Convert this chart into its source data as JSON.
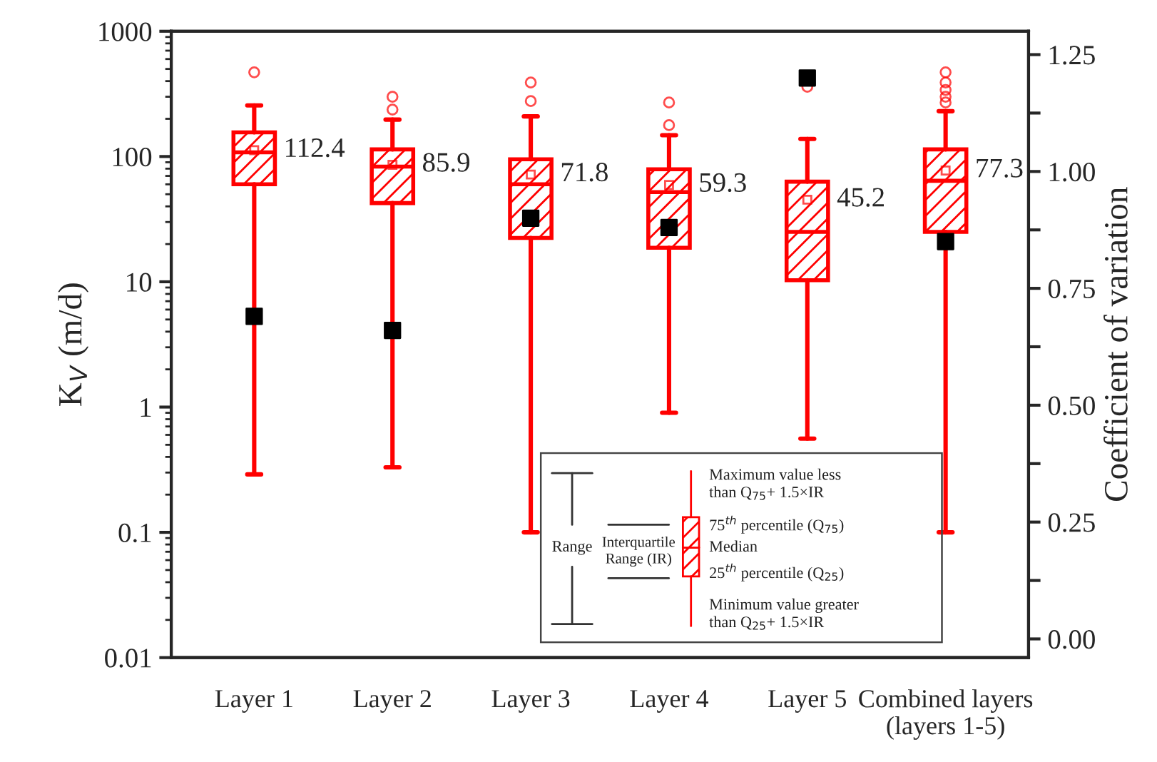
{
  "chart_data": {
    "type": "box",
    "categories": [
      "Layer 1",
      "Layer 2",
      "Layer 3",
      "Layer 4",
      "Layer 5",
      "Combined layers\n(layers 1-5)"
    ],
    "ylabel": "K$_{V}$ (m/d)",
    "y2label": "Coefficient of variation",
    "color": "#ff0000",
    "boxes": [
      {
        "low": 0.29,
        "q1": 60,
        "median": 108,
        "q3": 156,
        "high": 256,
        "mean": 112.4,
        "outliers": [
          470
        ]
      },
      {
        "low": 0.33,
        "q1": 42.5,
        "median": 83,
        "q3": 114,
        "high": 197,
        "mean": 85.9,
        "outliers": [
          300,
          237
        ]
      },
      {
        "low": 0.1,
        "q1": 22.4,
        "median": 60,
        "q3": 95,
        "high": 209,
        "mean": 71.8,
        "outliers": [
          390,
          277
        ]
      },
      {
        "low": 0.9,
        "q1": 18.7,
        "median": 52,
        "q3": 79,
        "high": 148,
        "mean": 59.3,
        "outliers": [
          270,
          178
        ]
      },
      {
        "low": 0.56,
        "q1": 10.3,
        "median": 25,
        "q3": 63,
        "high": 138,
        "mean": 45.2,
        "outliers": [
          360
        ]
      },
      {
        "low": 0.1,
        "q1": 25,
        "median": 64,
        "q3": 114,
        "high": 230,
        "mean": 77.3,
        "outliers": [
          470,
          390,
          340,
          300,
          270
        ]
      }
    ],
    "series": [
      {
        "type": "scatter",
        "axis": "y2",
        "color": "#000000",
        "marker": "square",
        "x": [
          "Layer 1",
          "Layer 2",
          "Layer 3",
          "Layer 4",
          "Layer 5",
          "Combined layers\n(layers 1-5)"
        ],
        "values": [
          0.69,
          0.66,
          0.9,
          0.88,
          1.2,
          0.85
        ]
      }
    ],
    "log": "y",
    "ylim": [
      0.01,
      1000
    ],
    "yticks": [
      {
        "value": 0.01,
        "label": "0.01"
      },
      {
        "value": 0.1,
        "label": "0.1"
      },
      {
        "value": 1,
        "label": "1"
      },
      {
        "value": 10,
        "label": "10"
      },
      {
        "value": 100,
        "label": "100"
      },
      {
        "value": 1000,
        "label": "1000"
      }
    ],
    "y2lim": [
      -0.04,
      1.3
    ],
    "y2ticks": [
      {
        "value": 0,
        "label": "0.00"
      },
      {
        "value": 0.125,
        "label": null
      },
      {
        "value": 0.25,
        "label": "0.25"
      },
      {
        "value": 0.375,
        "label": null
      },
      {
        "value": 0.5,
        "label": "0.50"
      },
      {
        "value": 0.625,
        "label": null
      },
      {
        "value": 0.75,
        "label": "0.75"
      },
      {
        "value": 0.875,
        "label": null
      },
      {
        "value": 1.0,
        "label": "1.00"
      },
      {
        "value": 1.125,
        "label": null
      },
      {
        "value": 1.25,
        "label": "1.25"
      }
    ],
    "grid": false,
    "annotations": [
      "112.4",
      "85.9",
      "71.8",
      "59.3",
      "45.2",
      "77.3",
      "Range",
      "Interquartile\nRange (IR)",
      "Maximum value less\nthan Q$_{75}$+ 1.5×IR",
      "75$^{th}$ percentile (Q$_{75}$)",
      "Median",
      "25$^{th}$ percentile (Q$_{25}$)",
      "Minimum value greater\nthan Q$_{25}$+ 1.5×IR"
    ]
  }
}
